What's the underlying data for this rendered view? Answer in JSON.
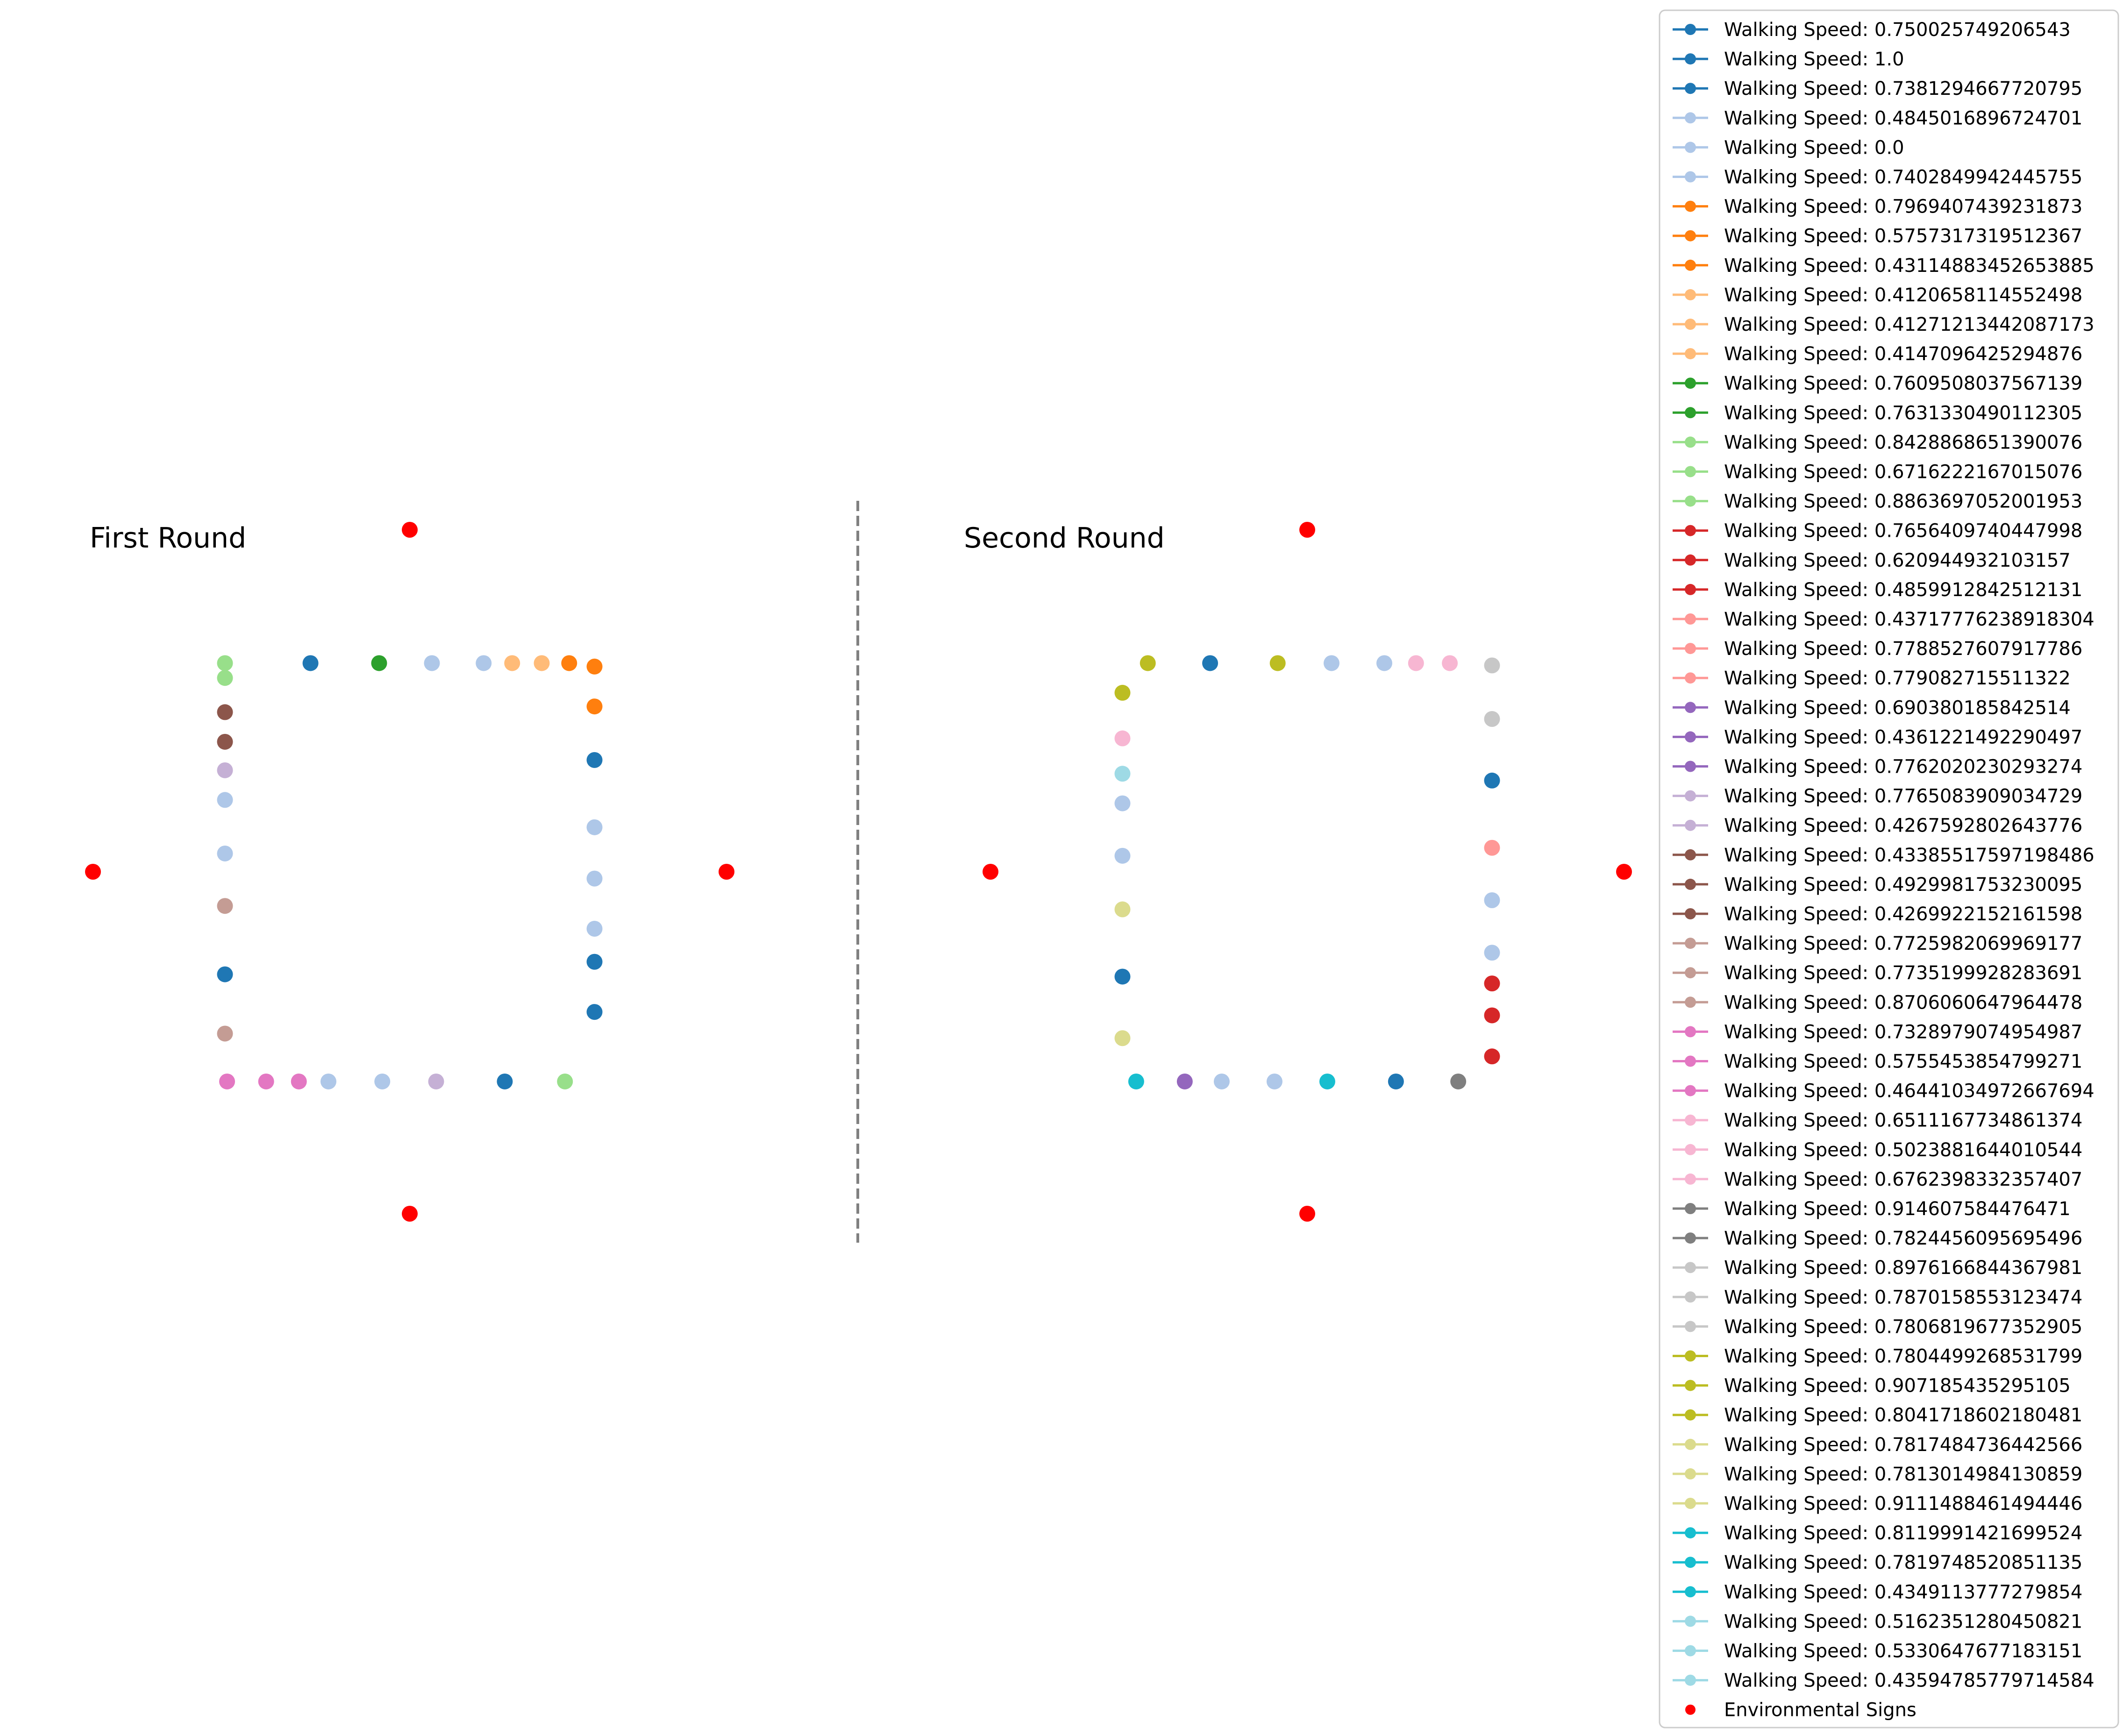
{
  "chart_data": {
    "type": "scatter",
    "colors": {
      "tab20": [
        "#1f77b4",
        "#aec7e8",
        "#ff7f0e",
        "#ffbb78",
        "#2ca02c",
        "#98df8a",
        "#d62728",
        "#ff9896",
        "#9467bd",
        "#c5b0d5",
        "#8c564b",
        "#c49c94",
        "#e377c2",
        "#f7b6d2",
        "#7f7f7f",
        "#c7c7c7",
        "#bcbd22",
        "#dbdb8d",
        "#17becf",
        "#9edae5"
      ],
      "sign": "#ff0000",
      "divider": "#808080"
    },
    "divider": {
      "style": "dashed"
    },
    "legend": {
      "placement": "right",
      "entries": [
        {
          "label": "Walking Speed: 0.750025749206543",
          "color_index": 0
        },
        {
          "label": "Walking Speed: 1.0",
          "color_index": 0
        },
        {
          "label": "Walking Speed: 0.7381294667720795",
          "color_index": 0
        },
        {
          "label": "Walking Speed: 0.4845016896724701",
          "color_index": 1
        },
        {
          "label": "Walking Speed: 0.0",
          "color_index": 1
        },
        {
          "label": "Walking Speed: 0.7402849942445755",
          "color_index": 1
        },
        {
          "label": "Walking Speed: 0.7969407439231873",
          "color_index": 2
        },
        {
          "label": "Walking Speed: 0.5757317319512367",
          "color_index": 2
        },
        {
          "label": "Walking Speed: 0.43114883452653885",
          "color_index": 2
        },
        {
          "label": "Walking Speed: 0.4120658114552498",
          "color_index": 3
        },
        {
          "label": "Walking Speed: 0.41271213442087173",
          "color_index": 3
        },
        {
          "label": "Walking Speed: 0.4147096425294876",
          "color_index": 3
        },
        {
          "label": "Walking Speed: 0.7609508037567139",
          "color_index": 4
        },
        {
          "label": "Walking Speed: 0.7631330490112305",
          "color_index": 4
        },
        {
          "label": "Walking Speed: 0.8428868651390076",
          "color_index": 5
        },
        {
          "label": "Walking Speed: 0.6716222167015076",
          "color_index": 5
        },
        {
          "label": "Walking Speed: 0.8863697052001953",
          "color_index": 5
        },
        {
          "label": "Walking Speed: 0.7656409740447998",
          "color_index": 6
        },
        {
          "label": "Walking Speed: 0.620944932103157",
          "color_index": 6
        },
        {
          "label": "Walking Speed: 0.4859912842512131",
          "color_index": 6
        },
        {
          "label": "Walking Speed: 0.43717776238918304",
          "color_index": 7
        },
        {
          "label": "Walking Speed: 0.7788527607917786",
          "color_index": 7
        },
        {
          "label": "Walking Speed: 0.779082715511322",
          "color_index": 7
        },
        {
          "label": "Walking Speed: 0.690380185842514",
          "color_index": 8
        },
        {
          "label": "Walking Speed: 0.4361221492290497",
          "color_index": 8
        },
        {
          "label": "Walking Speed: 0.7762020230293274",
          "color_index": 8
        },
        {
          "label": "Walking Speed: 0.7765083909034729",
          "color_index": 9
        },
        {
          "label": "Walking Speed: 0.4267592802643776",
          "color_index": 9
        },
        {
          "label": "Walking Speed: 0.43385517597198486",
          "color_index": 10
        },
        {
          "label": "Walking Speed: 0.4929981753230095",
          "color_index": 10
        },
        {
          "label": "Walking Speed: 0.4269922152161598",
          "color_index": 10
        },
        {
          "label": "Walking Speed: 0.7725982069969177",
          "color_index": 11
        },
        {
          "label": "Walking Speed: 0.7735199928283691",
          "color_index": 11
        },
        {
          "label": "Walking Speed: 0.8706060647964478",
          "color_index": 11
        },
        {
          "label": "Walking Speed: 0.7328979074954987",
          "color_index": 12
        },
        {
          "label": "Walking Speed: 0.5755453854799271",
          "color_index": 12
        },
        {
          "label": "Walking Speed: 0.46441034972667694",
          "color_index": 12
        },
        {
          "label": "Walking Speed: 0.6511167734861374",
          "color_index": 13
        },
        {
          "label": "Walking Speed: 0.5023881644010544",
          "color_index": 13
        },
        {
          "label": "Walking Speed: 0.6762398332357407",
          "color_index": 13
        },
        {
          "label": "Walking Speed: 0.914607584476471",
          "color_index": 14
        },
        {
          "label": "Walking Speed: 0.7824456095695496",
          "color_index": 14
        },
        {
          "label": "Walking Speed: 0.8976166844367981",
          "color_index": 15
        },
        {
          "label": "Walking Speed: 0.7870158553123474",
          "color_index": 15
        },
        {
          "label": "Walking Speed: 0.7806819677352905",
          "color_index": 15
        },
        {
          "label": "Walking Speed: 0.7804499268531799",
          "color_index": 16
        },
        {
          "label": "Walking Speed: 0.907185435295105",
          "color_index": 16
        },
        {
          "label": "Walking Speed: 0.8041718602180481",
          "color_index": 16
        },
        {
          "label": "Walking Speed: 0.7817484736442566",
          "color_index": 17
        },
        {
          "label": "Walking Speed: 0.7813014984130859",
          "color_index": 17
        },
        {
          "label": "Walking Speed: 0.9111488461494446",
          "color_index": 17
        },
        {
          "label": "Walking Speed: 0.8119991421699524",
          "color_index": 18
        },
        {
          "label": "Walking Speed: 0.7819748520851135",
          "color_index": 18
        },
        {
          "label": "Walking Speed: 0.4349113777279854",
          "color_index": 18
        },
        {
          "label": "Walking Speed: 0.5162351280450821",
          "color_index": 19
        },
        {
          "label": "Walking Speed: 0.5330647677183151",
          "color_index": 19
        },
        {
          "label": "Walking Speed: 0.43594785779714584",
          "color_index": 19
        },
        {
          "label": "Environmental Signs",
          "color": "#ff0000",
          "marker_only": true
        }
      ]
    },
    "panels": [
      {
        "title": "First Round",
        "xlim": [
          -3.2,
          3.2
        ],
        "ylim": [
          -3.2,
          3.2
        ],
        "signs": [
          [
            0,
            3
          ],
          [
            0,
            -3
          ],
          [
            -3,
            0
          ],
          [
            3,
            0
          ]
        ],
        "points": [
          {
            "x": -1.75,
            "y": 1.83,
            "c": 5
          },
          {
            "x": -0.94,
            "y": 1.83,
            "c": 0
          },
          {
            "x": -0.29,
            "y": 1.83,
            "c": 4
          },
          {
            "x": 0.21,
            "y": 1.83,
            "c": 1
          },
          {
            "x": 0.7,
            "y": 1.83,
            "c": 1
          },
          {
            "x": 0.97,
            "y": 1.83,
            "c": 3
          },
          {
            "x": 1.25,
            "y": 1.83,
            "c": 3
          },
          {
            "x": 1.51,
            "y": 1.83,
            "c": 2
          },
          {
            "x": 1.75,
            "y": 1.8,
            "c": 2
          },
          {
            "x": 1.75,
            "y": 1.45,
            "c": 2
          },
          {
            "x": 1.75,
            "y": 0.98,
            "c": 0
          },
          {
            "x": 1.75,
            "y": 0.39,
            "c": 1
          },
          {
            "x": 1.75,
            "y": -0.06,
            "c": 1
          },
          {
            "x": 1.75,
            "y": -0.5,
            "c": 1
          },
          {
            "x": 1.75,
            "y": -0.79,
            "c": 0
          },
          {
            "x": 1.75,
            "y": -1.23,
            "c": 0
          },
          {
            "x": 1.47,
            "y": -1.84,
            "c": 5
          },
          {
            "x": 0.9,
            "y": -1.84,
            "c": 0
          },
          {
            "x": 0.25,
            "y": -1.84,
            "c": 9
          },
          {
            "x": -0.26,
            "y": -1.84,
            "c": 1
          },
          {
            "x": -0.77,
            "y": -1.84,
            "c": 1
          },
          {
            "x": -1.05,
            "y": -1.84,
            "c": 12
          },
          {
            "x": -1.36,
            "y": -1.84,
            "c": 12
          },
          {
            "x": -1.73,
            "y": -1.84,
            "c": 12
          },
          {
            "x": -1.75,
            "y": -1.42,
            "c": 11
          },
          {
            "x": -1.75,
            "y": -0.9,
            "c": 0
          },
          {
            "x": -1.75,
            "y": -0.3,
            "c": 11
          },
          {
            "x": -1.75,
            "y": 0.16,
            "c": 1
          },
          {
            "x": -1.75,
            "y": 0.63,
            "c": 1
          },
          {
            "x": -1.75,
            "y": 0.89,
            "c": 9
          },
          {
            "x": -1.75,
            "y": 1.14,
            "c": 10
          },
          {
            "x": -1.75,
            "y": 1.4,
            "c": 10
          },
          {
            "x": -1.75,
            "y": 1.7,
            "c": 5
          }
        ]
      },
      {
        "title": "Second Round",
        "xlim": [
          -3.2,
          3.2
        ],
        "ylim": [
          -3.2,
          3.2
        ],
        "signs": [
          [
            0,
            3
          ],
          [
            0,
            -3
          ],
          [
            -3,
            0
          ],
          [
            3,
            0
          ]
        ],
        "points": [
          {
            "x": -1.51,
            "y": 1.83,
            "c": 16
          },
          {
            "x": -0.92,
            "y": 1.83,
            "c": 0
          },
          {
            "x": -0.28,
            "y": 1.83,
            "c": 16
          },
          {
            "x": 0.23,
            "y": 1.83,
            "c": 1
          },
          {
            "x": 0.73,
            "y": 1.83,
            "c": 1
          },
          {
            "x": 1.03,
            "y": 1.83,
            "c": 13
          },
          {
            "x": 1.35,
            "y": 1.83,
            "c": 13
          },
          {
            "x": 1.75,
            "y": 1.81,
            "c": 15
          },
          {
            "x": 1.75,
            "y": 1.34,
            "c": 15
          },
          {
            "x": 1.75,
            "y": 0.8,
            "c": 0
          },
          {
            "x": 1.75,
            "y": 0.21,
            "c": 7
          },
          {
            "x": 1.75,
            "y": -0.25,
            "c": 1
          },
          {
            "x": 1.75,
            "y": -0.71,
            "c": 1
          },
          {
            "x": 1.75,
            "y": -0.98,
            "c": 6
          },
          {
            "x": 1.75,
            "y": -1.26,
            "c": 6
          },
          {
            "x": 1.75,
            "y": -1.62,
            "c": 6
          },
          {
            "x": 1.43,
            "y": -1.84,
            "c": 14
          },
          {
            "x": 0.84,
            "y": -1.84,
            "c": 0
          },
          {
            "x": 0.19,
            "y": -1.84,
            "c": 18
          },
          {
            "x": -0.31,
            "y": -1.84,
            "c": 1
          },
          {
            "x": -0.81,
            "y": -1.84,
            "c": 1
          },
          {
            "x": -1.16,
            "y": -1.84,
            "c": 8
          },
          {
            "x": -1.62,
            "y": -1.84,
            "c": 18
          },
          {
            "x": -1.75,
            "y": -1.46,
            "c": 17
          },
          {
            "x": -1.75,
            "y": -0.92,
            "c": 0
          },
          {
            "x": -1.75,
            "y": -0.33,
            "c": 17
          },
          {
            "x": -1.75,
            "y": 0.14,
            "c": 1
          },
          {
            "x": -1.75,
            "y": 0.6,
            "c": 1
          },
          {
            "x": -1.75,
            "y": 0.86,
            "c": 19
          },
          {
            "x": -1.75,
            "y": 1.17,
            "c": 13
          },
          {
            "x": -1.75,
            "y": 1.57,
            "c": 16
          }
        ]
      }
    ]
  }
}
